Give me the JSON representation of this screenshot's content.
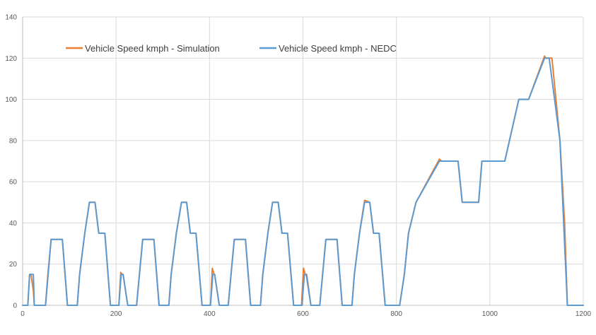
{
  "chart_data": {
    "type": "line",
    "title": "",
    "xlabel": "",
    "ylabel": "",
    "xlim": [
      0,
      1200
    ],
    "ylim": [
      0,
      140
    ],
    "x_ticks": [
      0,
      200,
      400,
      600,
      800,
      1000,
      1200
    ],
    "y_ticks": [
      0,
      20,
      40,
      60,
      80,
      100,
      120,
      140
    ],
    "grid": "vertical and horizontal",
    "legend_position": "top-left",
    "series": [
      {
        "name": "Vehicle Speed kmph - Simulation",
        "color": "#ED7D31",
        "x": [
          0,
          11,
          15,
          18,
          23,
          25,
          28,
          49,
          54,
          61,
          85,
          96,
          117,
          122,
          133,
          143,
          155,
          163,
          176,
          188,
          195,
          206,
          210,
          213,
          215,
          225,
          244,
          250,
          257,
          281,
          292,
          313,
          318,
          329,
          340,
          351,
          359,
          371,
          384,
          391,
          402,
          406,
          410,
          411,
          421,
          440,
          446,
          453,
          477,
          488,
          509,
          514,
          525,
          535,
          547,
          555,
          567,
          580,
          587,
          597,
          601,
          605,
          608,
          617,
          636,
          642,
          649,
          673,
          684,
          705,
          710,
          721,
          732,
          743,
          751,
          763,
          776,
          800,
          807,
          817,
          826,
          842,
          892,
          897,
          932,
          941,
          950,
          976,
          983,
          1018,
          1032,
          1062,
          1083,
          1117,
          1120,
          1133,
          1150,
          1160,
          1166,
          1200
        ],
        "y": [
          0,
          0,
          15,
          15,
          7,
          0,
          0,
          0,
          15,
          32,
          32,
          0,
          0,
          15,
          35,
          50,
          50,
          35,
          35,
          0,
          0,
          0,
          16,
          15,
          15,
          0,
          0,
          15,
          32,
          32,
          0,
          0,
          15,
          35,
          50,
          50,
          35,
          35,
          0,
          0,
          0,
          18,
          15,
          15,
          0,
          0,
          15,
          32,
          32,
          0,
          0,
          15,
          35,
          50,
          50,
          35,
          35,
          0,
          0,
          0,
          18,
          15,
          15,
          0,
          0,
          15,
          32,
          32,
          0,
          0,
          15,
          35,
          51,
          50,
          35,
          35,
          0,
          0,
          0,
          15,
          35,
          50,
          71,
          70,
          70,
          50,
          50,
          50,
          70,
          70,
          70,
          100,
          100,
          121,
          120,
          120,
          80,
          40,
          0,
          0
        ]
      },
      {
        "name": "Vehicle Speed kmph - NEDC",
        "color": "#5B9BD5",
        "x": [
          0,
          11,
          15,
          23,
          25,
          28,
          49,
          61,
          85,
          96,
          117,
          122,
          133,
          143,
          155,
          163,
          176,
          188,
          195,
          206,
          211,
          215,
          225,
          244,
          257,
          281,
          292,
          313,
          318,
          329,
          340,
          351,
          359,
          371,
          384,
          391,
          402,
          407,
          411,
          421,
          440,
          453,
          477,
          488,
          509,
          514,
          525,
          535,
          547,
          555,
          567,
          580,
          587,
          598,
          603,
          607,
          617,
          636,
          649,
          673,
          684,
          705,
          710,
          721,
          732,
          743,
          751,
          763,
          776,
          800,
          807,
          817,
          826,
          842,
          892,
          897,
          932,
          941,
          950,
          976,
          983,
          1018,
          1032,
          1062,
          1083,
          1117,
          1127,
          1150,
          1166,
          1200
        ],
        "y": [
          0,
          0,
          15,
          15,
          0,
          0,
          0,
          32,
          32,
          0,
          0,
          15,
          35,
          50,
          50,
          35,
          35,
          0,
          0,
          0,
          15,
          15,
          0,
          0,
          32,
          32,
          0,
          0,
          15,
          35,
          50,
          50,
          35,
          35,
          0,
          0,
          0,
          15,
          15,
          0,
          0,
          32,
          32,
          0,
          0,
          15,
          35,
          50,
          50,
          35,
          35,
          0,
          0,
          0,
          15,
          15,
          0,
          0,
          32,
          32,
          0,
          0,
          15,
          35,
          50,
          50,
          35,
          35,
          0,
          0,
          0,
          15,
          35,
          50,
          70,
          70,
          70,
          50,
          50,
          50,
          70,
          70,
          70,
          100,
          100,
          120,
          120,
          80,
          0,
          0
        ]
      }
    ]
  }
}
